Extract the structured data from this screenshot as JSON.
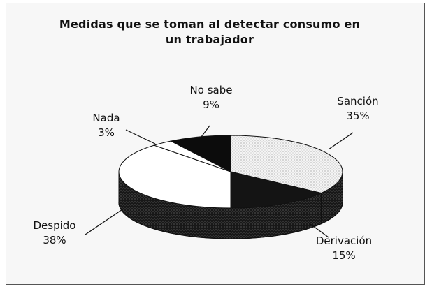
{
  "chart_data": {
    "type": "pie",
    "title_line1": "Medidas que se toman al detectar consumo en",
    "title_line2": "un trabajador",
    "slices": [
      {
        "label": "Sanción",
        "value": 35,
        "value_text": "35%",
        "color": "#f2f2f2",
        "side": "#d6d6d6",
        "pattern": "dots-light"
      },
      {
        "label": "Derivación",
        "value": 15,
        "value_text": "15%",
        "color": "#141414",
        "side": "#080808",
        "pattern": "dots-dark"
      },
      {
        "label": "Despido",
        "value": 38,
        "value_text": "38%",
        "color": "#ffffff",
        "side": "#1a1a1a",
        "pattern": "dots-dark"
      },
      {
        "label": "Nada",
        "value": 3,
        "value_text": "3%",
        "color": "#ffffff",
        "side": "#e0e0e0",
        "pattern": "none"
      },
      {
        "label": "No sabe",
        "value": 9,
        "value_text": "9%",
        "color": "#0c0c0c",
        "side": "#050505",
        "pattern": "none"
      }
    ]
  }
}
